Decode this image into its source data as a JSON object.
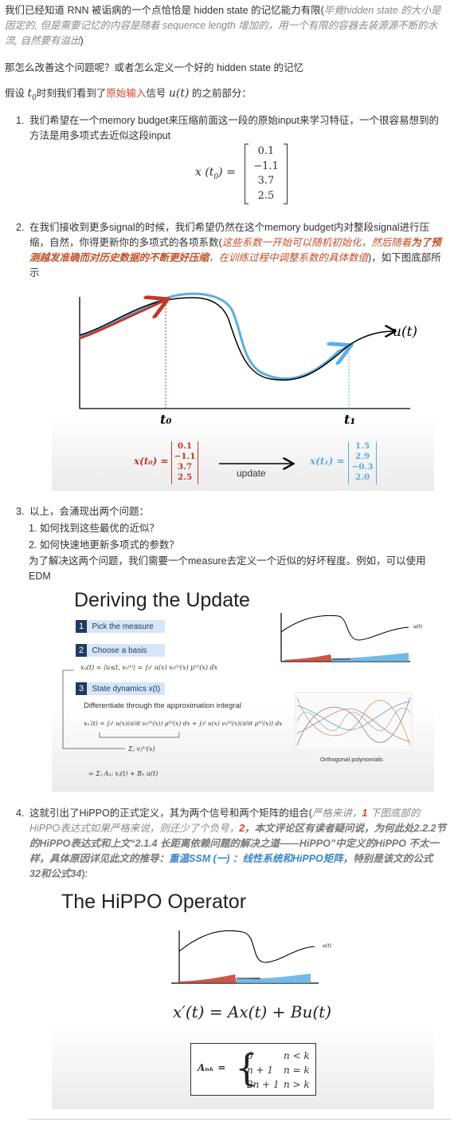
{
  "intro": {
    "l1a": "我们已经知道 RNN 被诟病的一个点恰恰是 hidden state 的记忆能力有限(",
    "l1b": "毕竟hidden state 的大小是",
    "l2a": "固定的, 但是需要记忆的内容是随着 sequence length 增加的，用一个有限的容器去装源源不断的水",
    "l3a": "流, 自然要有溢出",
    "l3b": ")"
  },
  "question": "那怎么改善这个问题呢？或者怎么定义一个好的 hidden state 的记忆",
  "assume": {
    "a1": "假设 ",
    "t0": "t",
    "t0sub": "0",
    "a2": "时刻我们看到了",
    "raw": "原始输入",
    "a3": "信号 ",
    "u": "u(t)",
    "a4": " 的之前部分："
  },
  "item1": {
    "num": "1.",
    "line1": "我们希望在一个memory budget来压缩前面这一段的原始input来学习特征，一个很容易想到的",
    "line2": "方法是用多项式去近似这段input",
    "lhs": "x (t",
    "lhs_sub": "0",
    "lhs_end": ") =",
    "vec": [
      "0.1",
      "−1.1",
      "3.7",
      "2.5"
    ]
  },
  "item2": {
    "num": "2.",
    "line1": "在我们接收到更多signal的时候，我们希望仍然在这个memory budget内对整段signal进行压",
    "line2a": "缩，自然，你得更新你的多项式的各项系数(",
    "line2b": "这些系数一开始可以随机初始化，然后随着",
    "line2c": "为了预",
    "line3a": "测越发准确而对历史数据的不断更好压缩",
    "line3b": "，在训练过程中调整系数的具体数值",
    "line3c": ")，如下图底部所",
    "line4": "示"
  },
  "fig1": {
    "u_label": "u(t)",
    "t0": "t₀",
    "t1": "t₁",
    "x0_label": "x(t₀) =",
    "x0": [
      "0.1",
      "−1.1",
      "3.7",
      "2.5"
    ],
    "update": "update",
    "x1_label": "x(t₁) =",
    "x1": [
      "1.5",
      "2.9",
      "−0.3",
      "2.0"
    ],
    "colors": {
      "red": "#c0392b",
      "blue": "#5dade2",
      "black": "#000000"
    }
  },
  "item3": {
    "num": "3.",
    "line1": "以上，会涌现出两个问题：",
    "q1": "1. 如何找到这些最优的近似？",
    "q2": "2. 如何快速地更新多项式的参数？",
    "line2": "为了解决这两个问题，我们需要一个measure去定义一个近似的好坏程度。例如，可以使用",
    "line3": "EDM"
  },
  "fig2": {
    "title": "Deriving the Update",
    "s1": "Pick the measure",
    "s2": "Choose a basis",
    "s3": "State dynamics x(t)",
    "diff": "Differentiate through the approximation integral",
    "ortho": "Orthogonal polynomials",
    "u_label": "u(t)",
    "eq1": "xₙ(t) = ⟨u≤t, vₙ⁽ᵗ⁾⟩ = ∫₀ᵗ u(x) vₙ⁽ᵗ⁾(x) μ⁽ᵗ⁾(x) dx",
    "eq2": "xₙ′(t) = ∫₀ᵗ u(x)(∂/∂t vₙ⁽ᵗ⁾(x)) μ⁽ᵗ⁾(x) dx + ∫₀ᵗ u(x) vₙ⁽ᵗ⁾(x)(∂/∂t μ⁽ᵗ⁾(x)) dx",
    "eq3": "Σⱼ vⱼ⁽ᵗ⁾(x)",
    "eq4": "= Σⱼ Aₙⱼ xⱼ(t) + Bₙ u(t)"
  },
  "item4": {
    "num": "4.",
    "line1a": "这就引出了HiPPO的正式定义，其为两个信号和两个矩阵的组合(",
    "line1b": "严格来讲，",
    "line1c": "1",
    "line1d": " 下图底部的",
    "line2a": "HiPPO表达式如果严格来说，则还少了个负号，",
    "line2b": "2",
    "line2c": "，本文评论区有读者疑问说，为何此处2.2.2节",
    "line3": "的HiPPO表达式和上文“2.1.4 长距离依赖问题的解决之道——HiPPO”中定义的HiPPO 不太一",
    "line4a": "样，具体原因详见此文的推导：",
    "line4b": "重温SSM (一) ：线性系统和HiPPO矩阵",
    "line4c": "，特别是该文的公式",
    "line5a": "32和公式34",
    "line5b": "):"
  },
  "fig3": {
    "title": "The HiPPO Operator",
    "u_label": "u(t)",
    "eq": "x′(t) = Ax(t) + Bu(t)",
    "lhs": "Aₙₖ =",
    "cases": [
      {
        "val": "0",
        "cond": "n < k"
      },
      {
        "val": "n + 1",
        "cond": "n = k"
      },
      {
        "val": "2n + 1",
        "cond": "n > k"
      }
    ]
  }
}
